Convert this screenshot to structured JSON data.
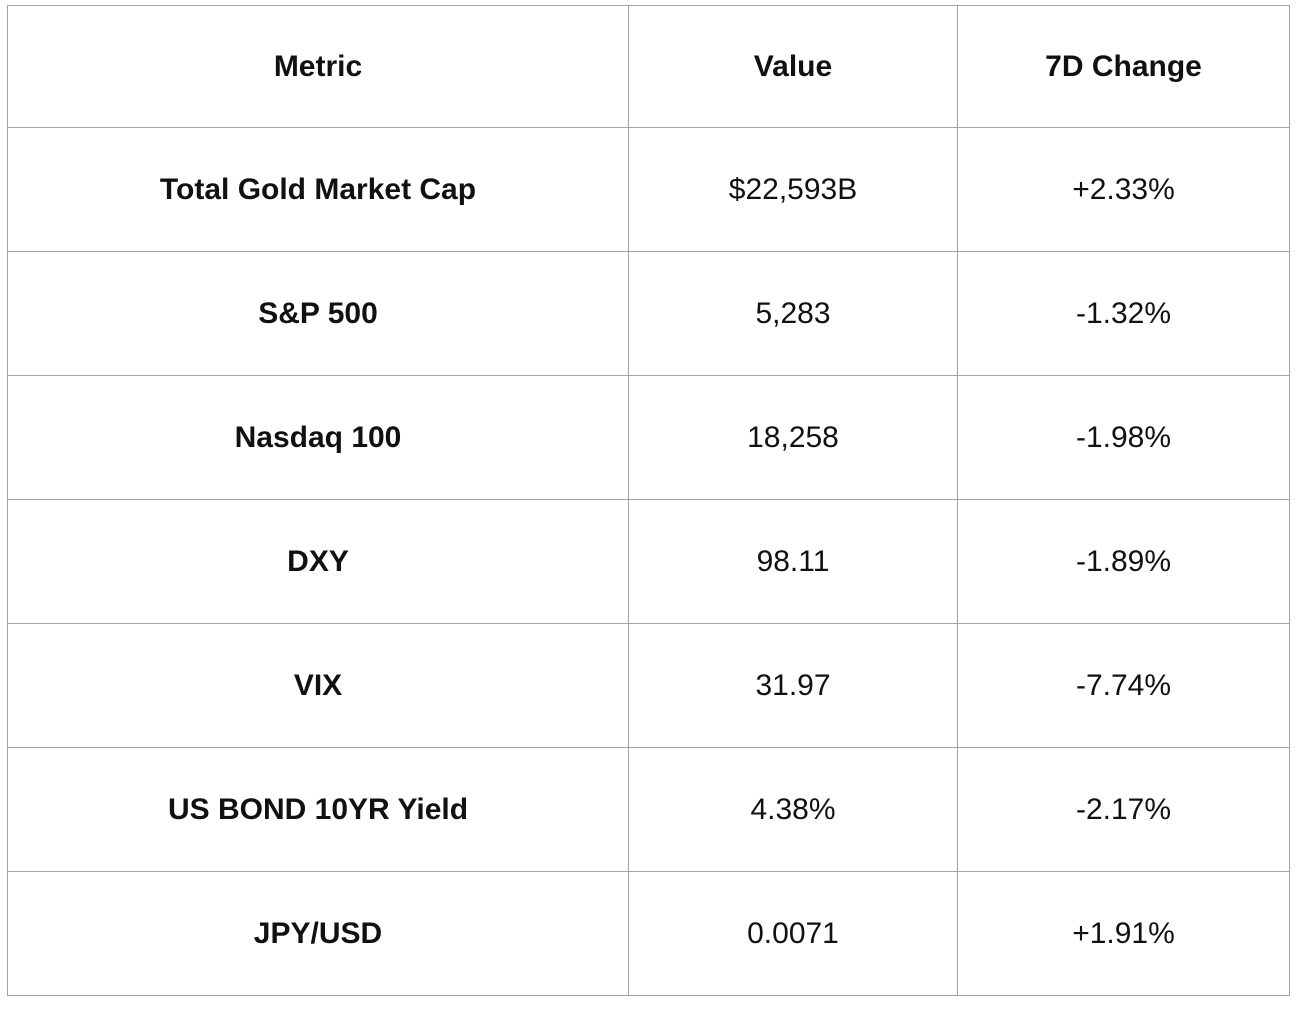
{
  "chart_data": {
    "type": "table",
    "title": "",
    "columns": [
      "Metric",
      "Value",
      "7D Change"
    ],
    "rows": [
      {
        "metric": "Total Gold Market Cap",
        "value": "$22,593B",
        "change": "+2.33%"
      },
      {
        "metric": "S&P 500",
        "value": "5,283",
        "change": "-1.32%"
      },
      {
        "metric": "Nasdaq 100",
        "value": "18,258",
        "change": "-1.98%"
      },
      {
        "metric": "DXY",
        "value": "98.11",
        "change": "-1.89%"
      },
      {
        "metric": "VIX",
        "value": "31.97",
        "change": "-7.74%"
      },
      {
        "metric": "US BOND 10YR Yield",
        "value": "4.38%",
        "change": "-2.17%"
      },
      {
        "metric": "JPY/USD",
        "value": "0.0071",
        "change": "+1.91%"
      }
    ]
  },
  "style": {
    "border_color": "#a2a2a2",
    "text_color": "#111111",
    "background_color": "#ffffff"
  }
}
